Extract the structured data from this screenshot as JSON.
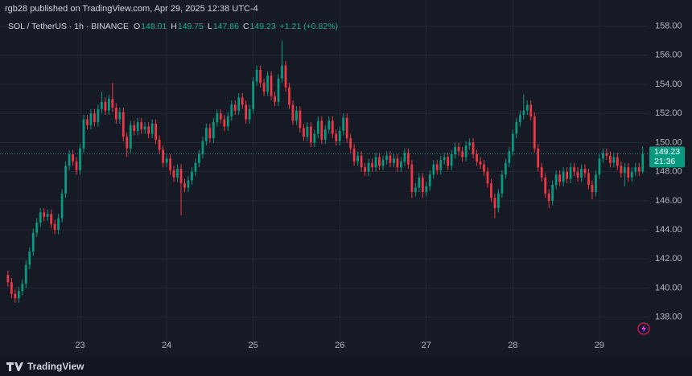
{
  "header": "rgb28 published on TradingView.com, Apr 29, 2025 12:38 UTC-4",
  "footer": "TradingView",
  "chart_data": {
    "type": "candlestick",
    "legend": {
      "symbol": "SOL / TetherUS · 1h · BINANCE",
      "keys": [
        "O",
        "H",
        "L",
        "C"
      ],
      "change": "+1.21 (+0.82%)"
    },
    "last_price_timer": "21:36",
    "up_color": "#089981",
    "down_color": "#f23645",
    "grid": true,
    "xlim": [
      -2.2,
      177.4
    ],
    "xticks": [
      {
        "value": 20,
        "label": "23"
      },
      {
        "value": 44,
        "label": "24"
      },
      {
        "value": 68,
        "label": "25"
      },
      {
        "value": 92,
        "label": "26"
      },
      {
        "value": 116,
        "label": "27"
      },
      {
        "value": 140,
        "label": "28"
      },
      {
        "value": 164,
        "label": "29"
      }
    ],
    "ylim": [
      135.5,
      159.8
    ],
    "yticks": [
      {
        "value": 138,
        "label": "138.00"
      },
      {
        "value": 140,
        "label": "140.00"
      },
      {
        "value": 142,
        "label": "142.00"
      },
      {
        "value": 144,
        "label": "144.00"
      },
      {
        "value": 146,
        "label": "146.00"
      },
      {
        "value": 148,
        "label": "148.00"
      },
      {
        "value": 150,
        "label": "150.00"
      },
      {
        "value": 152,
        "label": "152.00"
      },
      {
        "value": 154,
        "label": "154.00"
      },
      {
        "value": 156,
        "label": "156.00"
      },
      {
        "value": 158,
        "label": "158.00"
      }
    ],
    "open": [
      140.9,
      140.4,
      139.6,
      139.3,
      139.8,
      140.3,
      141.6,
      142.5,
      143.8,
      144.5,
      145.2,
      144.9,
      145.1,
      144.4,
      144.0,
      144.8,
      146.5,
      148.4,
      149.2,
      148.7,
      148.1,
      149.6,
      151.6,
      151.2,
      152.0,
      151.4,
      152.3,
      152.8,
      152.2,
      153.0,
      152.4,
      151.6,
      152.1,
      150.4,
      149.6,
      151.2,
      150.8,
      151.4,
      150.9,
      151.1,
      150.6,
      151.3,
      150.2,
      149.5,
      148.6,
      148.9,
      148.1,
      147.6,
      148.2,
      147.2,
      146.9,
      147.4,
      148.0,
      148.6,
      149.2,
      150.1,
      151.0,
      150.3,
      151.4,
      152.0,
      151.6,
      151.1,
      151.8,
      152.6,
      152.2,
      153.1,
      152.6,
      151.6,
      152.3,
      154.2,
      155.0,
      154.1,
      153.5,
      154.6,
      153.2,
      152.8,
      154.4,
      155.3,
      153.8,
      152.6,
      151.5,
      152.2,
      151.0,
      150.4,
      151.1,
      150.0,
      150.6,
      151.5,
      150.2,
      150.9,
      151.5,
      150.6,
      150.1,
      150.8,
      151.7,
      150.3,
      149.6,
      148.7,
      149.1,
      148.3,
      148.0,
      148.6,
      148.3,
      149.0,
      148.4,
      148.8,
      149.1,
      148.6,
      148.9,
      148.3,
      148.7,
      149.3,
      148.5,
      146.6,
      146.9,
      147.6,
      146.6,
      147.0,
      147.8,
      148.5,
      148.1,
      148.8,
      149.0,
      148.4,
      149.2,
      149.7,
      149.4,
      149.0,
      149.8,
      150.0,
      149.2,
      148.7,
      148.5,
      148.0,
      147.2,
      146.2,
      145.5,
      146.5,
      147.8,
      148.6,
      149.4,
      150.6,
      151.4,
      151.9,
      152.2,
      152.6,
      151.8,
      149.6,
      148.3,
      147.6,
      146.5,
      146.0,
      147.1,
      147.8,
      147.3,
      148.0,
      147.5,
      148.3,
      148.0,
      147.6,
      148.2,
      147.9,
      147.1,
      146.6,
      147.8,
      148.9,
      149.3,
      149.1,
      148.6,
      149.0,
      148.4,
      147.9,
      148.3,
      147.6,
      148.0,
      148.3,
      148.01
    ],
    "high": [
      141.2,
      140.7,
      139.9,
      140.1,
      140.6,
      141.9,
      142.8,
      144.1,
      144.8,
      145.5,
      145.5,
      145.4,
      145.4,
      144.7,
      145.1,
      146.8,
      148.7,
      149.5,
      149.5,
      149.0,
      149.9,
      151.9,
      151.9,
      152.3,
      152.3,
      152.6,
      153.5,
      153.1,
      153.3,
      154.1,
      152.7,
      152.4,
      152.4,
      150.7,
      151.5,
      151.5,
      151.7,
      151.7,
      151.4,
      151.4,
      151.6,
      151.6,
      150.5,
      149.8,
      149.2,
      149.2,
      148.4,
      148.5,
      148.5,
      147.5,
      147.7,
      148.3,
      148.9,
      149.5,
      150.4,
      151.3,
      151.3,
      151.7,
      152.3,
      152.3,
      151.9,
      152.1,
      152.9,
      152.9,
      153.4,
      153.4,
      152.9,
      152.6,
      154.5,
      155.3,
      155.3,
      154.4,
      154.9,
      154.9,
      153.5,
      154.7,
      157.0,
      155.6,
      154.1,
      152.9,
      152.5,
      152.5,
      151.3,
      151.4,
      151.4,
      150.9,
      151.8,
      151.8,
      151.2,
      151.8,
      151.8,
      150.9,
      151.1,
      152.0,
      152.0,
      150.6,
      149.9,
      149.4,
      149.4,
      148.6,
      148.9,
      148.9,
      149.3,
      149.3,
      149.1,
      149.4,
      149.4,
      149.2,
      149.2,
      149.0,
      149.6,
      149.6,
      148.8,
      147.2,
      147.9,
      147.9,
      147.3,
      148.1,
      148.8,
      148.8,
      149.1,
      149.3,
      149.3,
      149.5,
      150.0,
      150.0,
      149.7,
      150.1,
      150.3,
      150.3,
      149.5,
      149.0,
      148.8,
      148.3,
      147.5,
      146.5,
      146.8,
      148.1,
      148.9,
      149.7,
      150.9,
      151.7,
      152.2,
      153.3,
      152.9,
      152.9,
      152.1,
      149.9,
      148.6,
      147.9,
      146.8,
      147.4,
      148.1,
      148.1,
      148.3,
      148.3,
      148.6,
      148.6,
      148.3,
      148.5,
      148.5,
      148.2,
      147.4,
      148.1,
      149.2,
      149.6,
      149.6,
      149.4,
      149.3,
      149.3,
      148.7,
      148.6,
      148.6,
      148.3,
      148.6,
      148.6,
      149.75
    ],
    "low": [
      140.1,
      139.3,
      139.0,
      139.0,
      139.5,
      140.0,
      141.3,
      142.2,
      143.5,
      144.2,
      144.6,
      144.6,
      144.1,
      143.7,
      143.7,
      144.5,
      146.2,
      148.1,
      148.4,
      147.8,
      147.8,
      149.3,
      150.9,
      150.9,
      151.1,
      151.1,
      152.0,
      151.9,
      151.9,
      152.1,
      151.3,
      151.3,
      150.1,
      149.0,
      149.3,
      150.5,
      150.5,
      150.6,
      150.6,
      150.3,
      150.3,
      149.9,
      149.2,
      148.3,
      148.3,
      147.8,
      147.3,
      147.3,
      145.0,
      146.6,
      146.6,
      147.1,
      147.7,
      148.3,
      148.9,
      149.8,
      150.0,
      150.0,
      151.1,
      151.3,
      150.8,
      150.8,
      151.5,
      151.9,
      151.9,
      152.3,
      151.3,
      151.3,
      152.0,
      153.9,
      153.8,
      153.2,
      153.2,
      152.9,
      152.5,
      152.5,
      154.1,
      153.5,
      152.3,
      151.2,
      151.2,
      150.7,
      150.1,
      150.1,
      149.7,
      149.7,
      150.3,
      149.9,
      149.9,
      150.6,
      150.3,
      149.8,
      149.8,
      150.5,
      150.0,
      149.3,
      148.4,
      148.4,
      148.0,
      147.7,
      147.7,
      148.0,
      148.0,
      148.1,
      148.1,
      148.5,
      148.3,
      148.3,
      148.0,
      148.0,
      148.4,
      148.2,
      146.2,
      146.3,
      146.6,
      146.2,
      146.3,
      146.7,
      147.5,
      147.8,
      147.8,
      148.5,
      148.1,
      148.1,
      148.9,
      149.1,
      148.7,
      148.7,
      149.5,
      148.9,
      148.4,
      148.2,
      147.7,
      146.9,
      145.9,
      144.8,
      145.2,
      146.2,
      147.5,
      148.3,
      149.1,
      150.3,
      151.1,
      151.6,
      151.9,
      151.5,
      149.3,
      148.0,
      147.3,
      146.2,
      145.5,
      145.7,
      146.8,
      147.0,
      147.0,
      147.2,
      147.2,
      147.7,
      147.3,
      147.3,
      147.6,
      146.8,
      146.1,
      146.3,
      147.5,
      148.6,
      148.8,
      148.3,
      148.3,
      148.1,
      147.6,
      147.0,
      147.3,
      147.3,
      147.7,
      147.7,
      147.86
    ],
    "close": [
      140.4,
      139.6,
      139.3,
      139.8,
      140.3,
      141.6,
      142.5,
      143.8,
      144.5,
      145.2,
      144.9,
      145.1,
      144.4,
      144.0,
      144.8,
      146.5,
      148.4,
      149.2,
      148.7,
      148.1,
      149.6,
      151.6,
      151.2,
      152.0,
      151.4,
      152.3,
      152.8,
      152.2,
      153.0,
      152.4,
      151.6,
      152.1,
      150.4,
      149.6,
      151.2,
      150.8,
      151.4,
      150.9,
      151.1,
      150.6,
      151.3,
      150.2,
      149.5,
      148.6,
      148.9,
      148.1,
      147.6,
      148.2,
      147.2,
      146.9,
      147.4,
      148.0,
      148.6,
      149.2,
      150.1,
      151.0,
      150.3,
      151.4,
      152.0,
      151.6,
      151.1,
      151.8,
      152.6,
      152.2,
      153.1,
      152.6,
      151.6,
      152.3,
      154.2,
      155.0,
      154.1,
      153.5,
      154.6,
      153.2,
      152.8,
      154.4,
      155.3,
      153.8,
      152.6,
      151.5,
      152.2,
      151.0,
      150.4,
      151.1,
      150.0,
      150.6,
      151.5,
      150.2,
      150.9,
      151.5,
      150.6,
      150.1,
      150.8,
      151.7,
      150.3,
      149.6,
      148.7,
      149.1,
      148.3,
      148.0,
      148.6,
      148.3,
      149.0,
      148.4,
      148.8,
      149.1,
      148.6,
      148.9,
      148.3,
      148.7,
      149.3,
      148.5,
      146.6,
      146.9,
      147.6,
      146.6,
      147.0,
      147.8,
      148.5,
      148.1,
      148.8,
      149.0,
      148.4,
      149.2,
      149.7,
      149.4,
      149.0,
      149.8,
      150.0,
      149.2,
      148.7,
      148.5,
      148.0,
      147.2,
      146.2,
      145.5,
      146.5,
      147.8,
      148.6,
      149.4,
      150.6,
      151.4,
      151.9,
      152.2,
      152.6,
      151.8,
      149.6,
      148.3,
      147.6,
      146.5,
      146.0,
      147.1,
      147.8,
      147.3,
      148.0,
      147.5,
      148.3,
      148.0,
      147.6,
      148.2,
      147.9,
      147.1,
      146.6,
      147.8,
      148.9,
      149.3,
      149.1,
      148.6,
      149.0,
      148.4,
      147.9,
      148.3,
      147.6,
      148.0,
      148.3,
      148.01,
      149.23
    ]
  }
}
